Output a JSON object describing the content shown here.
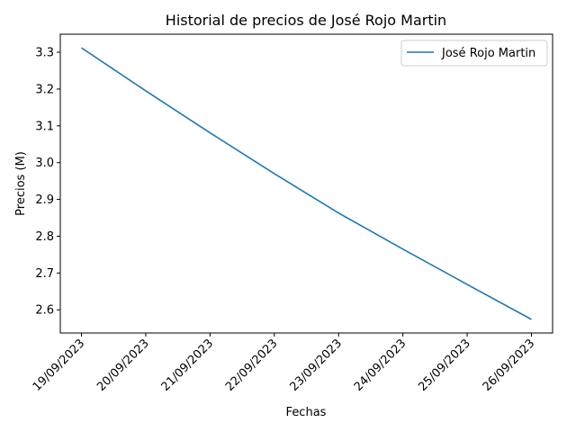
{
  "chart_data": {
    "type": "line",
    "title": "Historial de precios de José Rojo Martin",
    "xlabel": "Fechas",
    "ylabel": "Precios (M)",
    "categories": [
      "19/09/2023",
      "20/09/2023",
      "21/09/2023",
      "22/09/2023",
      "23/09/2023",
      "24/09/2023",
      "25/09/2023",
      "26/09/2023"
    ],
    "series": [
      {
        "name": "José Rojo Martin",
        "values": [
          3.312,
          3.195,
          3.081,
          2.97,
          2.863,
          2.765,
          2.669,
          2.574
        ],
        "color": "#1f77b4"
      }
    ],
    "yticks": [
      2.6,
      2.7,
      2.8,
      2.9,
      3.0,
      3.1,
      3.2,
      3.3
    ],
    "ylim": [
      2.537,
      3.349
    ],
    "grid": false,
    "legend": "top-right"
  }
}
